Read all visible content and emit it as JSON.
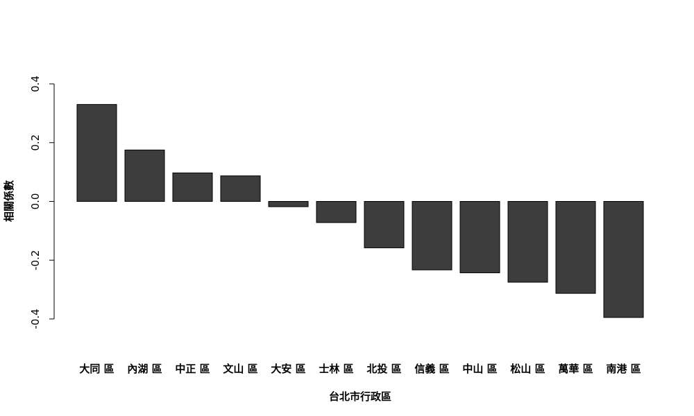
{
  "chart_data": {
    "type": "bar",
    "title": "",
    "xlabel": "台北市行政區",
    "ylabel": "相關係數",
    "categories": [
      "大同 區",
      "內湖 區",
      "中正 區",
      "文山 區",
      "大安 區",
      "士林 區",
      "北投 區",
      "信義 區",
      "中山 區",
      "松山 區",
      "萬華 區",
      "南港 區"
    ],
    "values": [
      0.33,
      0.175,
      0.097,
      0.087,
      -0.018,
      -0.072,
      -0.158,
      -0.233,
      -0.243,
      -0.275,
      -0.313,
      -0.395
    ],
    "ylim": [
      -0.4,
      0.4
    ],
    "yticks": [
      "-0.4",
      "-0.2",
      "0.0",
      "0.2",
      "0.4"
    ],
    "grid": false,
    "colors": {
      "bar_fill": "#3d3d3d",
      "bar_stroke": "#000000",
      "axis": "#000000"
    }
  }
}
